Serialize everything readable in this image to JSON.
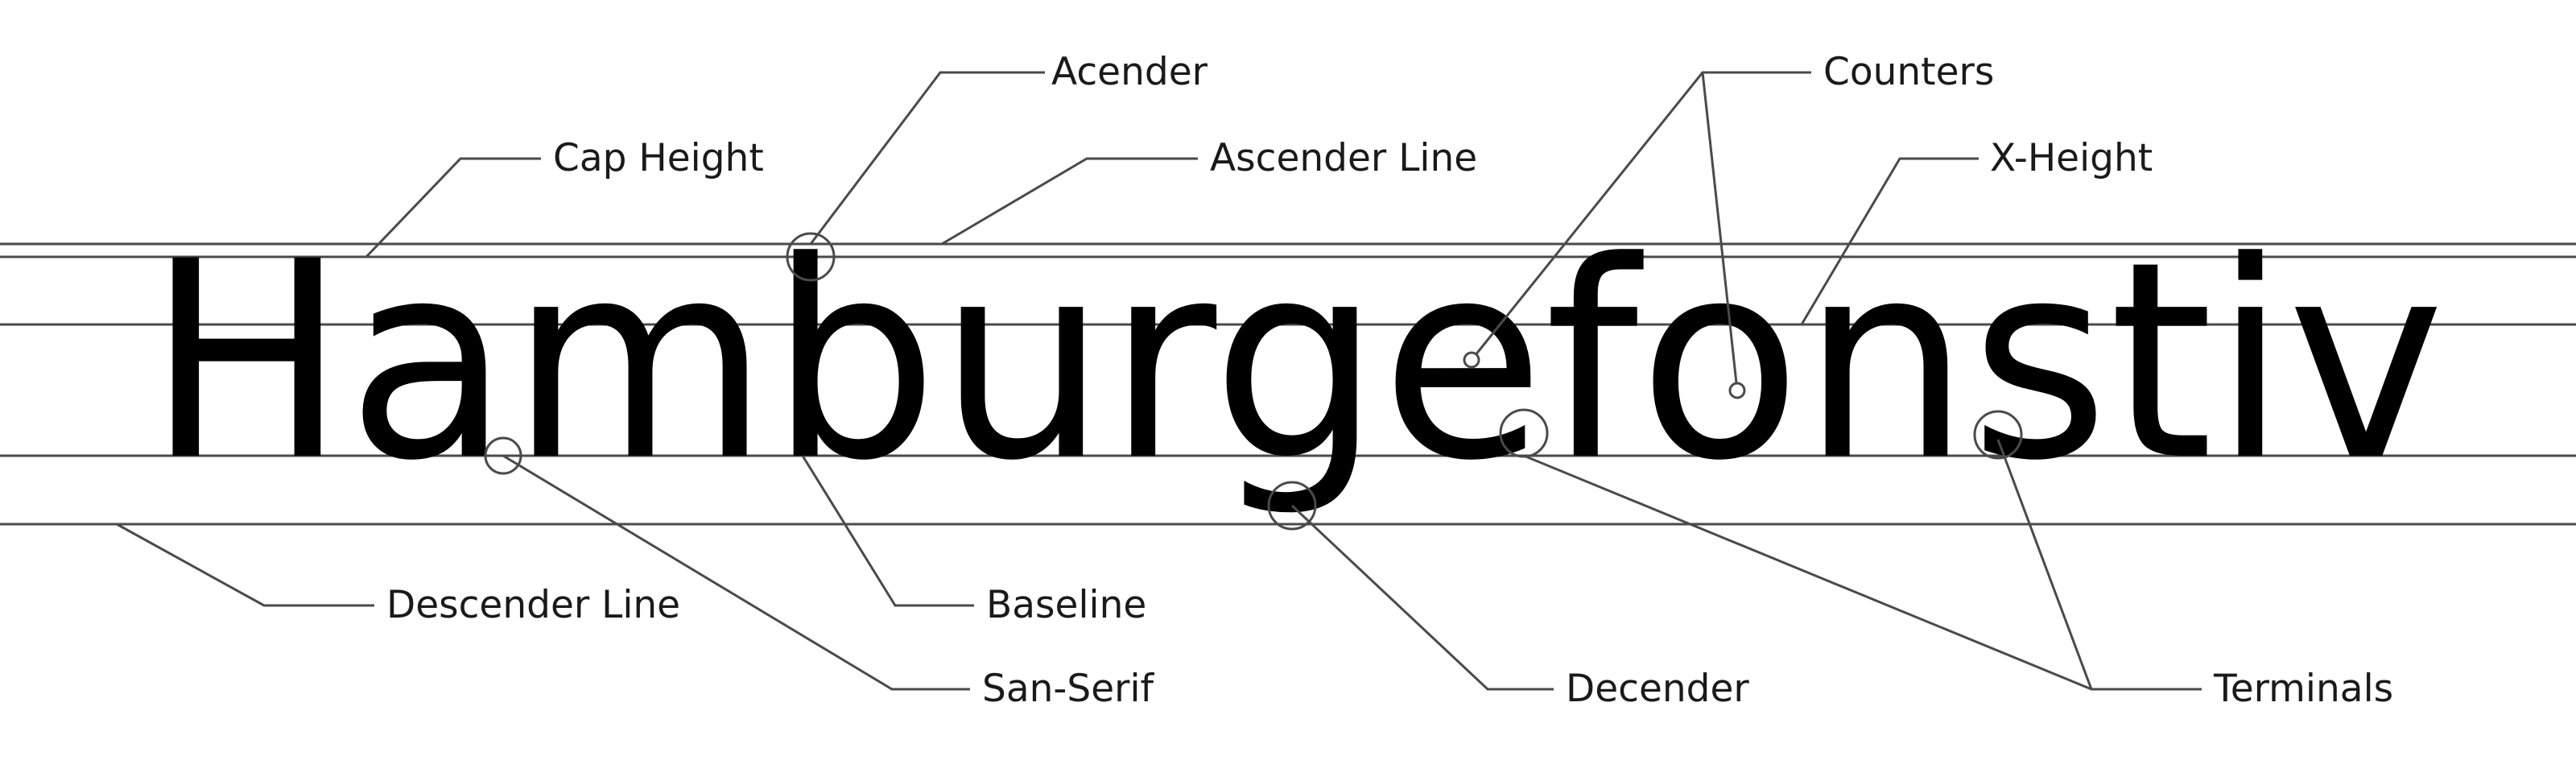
{
  "specimen": {
    "word": "Hamburgefonstiv"
  },
  "labels": {
    "acender": "Acender",
    "cap_height": "Cap Height",
    "ascender_line": "Ascender Line",
    "counters": "Counters",
    "x_height": "X-Height",
    "descender_line": "Descender Line",
    "baseline": "Baseline",
    "san_serif": "San-Serif",
    "decender": "Decender",
    "terminals": "Terminals"
  },
  "colors": {
    "ink": "#000000",
    "guides": "#4a4a4a",
    "text": "#1a1a1a",
    "background": "#ffffff"
  }
}
